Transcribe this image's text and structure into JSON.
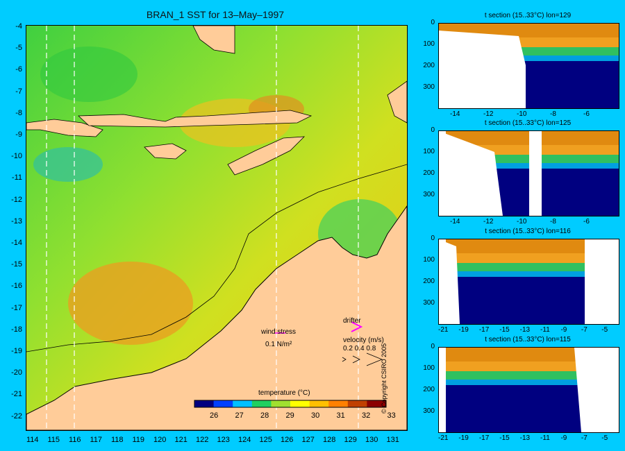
{
  "title": "BRAN_1 SST for 13–May–1997",
  "map": {
    "lat_labels": [
      "-4",
      "-5",
      "-6",
      "-7",
      "-8",
      "-9",
      "-10",
      "-11",
      "-12",
      "-13",
      "-14",
      "-15",
      "-16",
      "-17",
      "-18",
      "-19",
      "-20",
      "-21",
      "-22"
    ],
    "lon_labels": [
      "114",
      "115",
      "116",
      "117",
      "118",
      "119",
      "120",
      "121",
      "122",
      "123",
      "124",
      "125",
      "126",
      "127",
      "128",
      "129",
      "130",
      "131"
    ]
  },
  "legend": {
    "wind_stress_label": "wind stress",
    "wind_stress_scale": "0.1 N/m²",
    "drifter_label": "drifter",
    "velocity_label": "velocity (m/s)",
    "velocity_scale": "0.2 0.4 0.8"
  },
  "colorbar": {
    "title": "temperature (°C)",
    "labels": [
      "26",
      "27",
      "28",
      "29",
      "30",
      "31",
      "32",
      "33"
    ],
    "colors": [
      "#000080",
      "#0040ff",
      "#00c0ff",
      "#20d060",
      "#a0e030",
      "#ffff00",
      "#ffc000",
      "#ff8000",
      "#c04000",
      "#8b0000"
    ]
  },
  "sections": [
    {
      "title": "t section (15..33°C) lon=129",
      "x_labels": [
        "-14",
        "-12",
        "-10",
        "-8",
        "-6"
      ],
      "y_labels": [
        "0",
        "100",
        "200",
        "300"
      ]
    },
    {
      "title": "t section (15..33°C) lon=125",
      "x_labels": [
        "-14",
        "-12",
        "-10",
        "-8",
        "-6"
      ],
      "y_labels": [
        "0",
        "100",
        "200",
        "300"
      ]
    },
    {
      "title": "t section (15..33°C) lon=116",
      "x_labels": [
        "-21",
        "-19",
        "-17",
        "-15",
        "-13",
        "-11",
        "-9",
        "-7",
        "-5"
      ],
      "y_labels": [
        "0",
        "100",
        "200",
        "300"
      ]
    },
    {
      "title": "t section (15..33°C) lon=115",
      "x_labels": [
        "-21",
        "-19",
        "-17",
        "-15",
        "-13",
        "-11",
        "-9",
        "-7",
        "-5"
      ],
      "y_labels": [
        "0",
        "100",
        "200",
        "300"
      ]
    }
  ],
  "copyright": "© Copyright CSIRO 2005"
}
